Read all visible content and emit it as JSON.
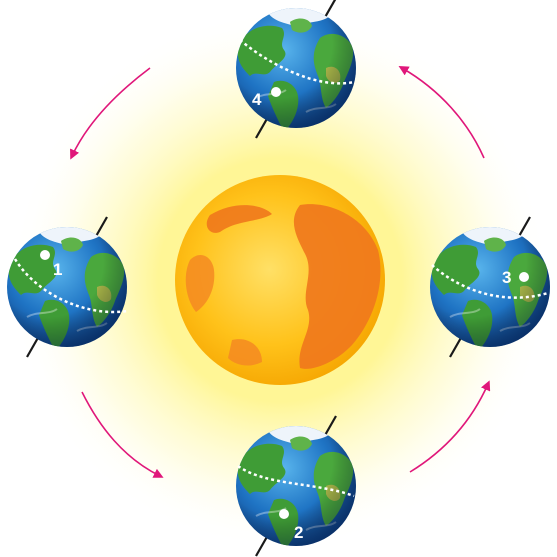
{
  "diagram": {
    "colors": {
      "orbit_arrow": "#e0177a",
      "sun_glow": "#fff27a",
      "sun_core": "#ffcc1a",
      "sun_patch": "#f07a1c",
      "ocean": "#1f6fbf",
      "ocean_light": "#4aa3e0",
      "land": "#3f9c36",
      "ice": "#f2f6fb",
      "axis": "#1a1a1a",
      "marker": "#ffffff"
    },
    "earths": [
      {
        "id": "top",
        "label": "4"
      },
      {
        "id": "left",
        "label": "1"
      },
      {
        "id": "right",
        "label": "3"
      },
      {
        "id": "bottom",
        "label": "2"
      }
    ]
  }
}
